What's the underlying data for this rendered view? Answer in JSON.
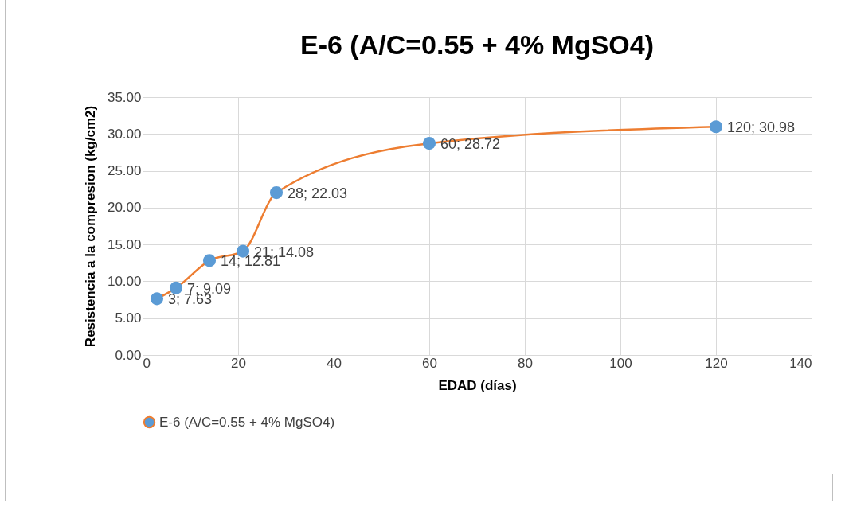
{
  "chart_data": {
    "type": "line",
    "title": "E-6  (A/C=0.55 + 4% MgSO4)",
    "xlabel": "EDAD (días)",
    "ylabel": "Resistencia a la compresion (kg/cm2)",
    "x": [
      3,
      7,
      14,
      21,
      28,
      60,
      120
    ],
    "series": [
      {
        "name": "E-6  (A/C=0.55 + 4% MgSO4)",
        "color": "#ed7d31",
        "values": [
          7.63,
          9.09,
          12.81,
          14.08,
          22.03,
          28.72,
          30.98
        ],
        "value_labels": [
          "3; 7.63",
          "7; 9.09",
          "14; 12.81",
          "21; 14.08",
          "28; 22.03",
          "60; 28.72",
          "120; 30.98"
        ]
      }
    ],
    "xlim": [
      0,
      140
    ],
    "xticks": [
      0,
      20,
      40,
      60,
      80,
      100,
      120,
      140
    ],
    "ylim": [
      0,
      35
    ],
    "yticks": [
      {
        "value": 0,
        "label": "0.00"
      },
      {
        "value": 5,
        "label": "5.00"
      },
      {
        "value": 10,
        "label": "10.00"
      },
      {
        "value": 15,
        "label": "15.00"
      },
      {
        "value": 20,
        "label": "20.00"
      },
      {
        "value": 25,
        "label": "25.00"
      },
      {
        "value": 30,
        "label": "30.00"
      },
      {
        "value": 35,
        "label": "35.00"
      }
    ],
    "grid": true,
    "legend": "bottom",
    "marker": "circle",
    "line_style": "solid"
  }
}
